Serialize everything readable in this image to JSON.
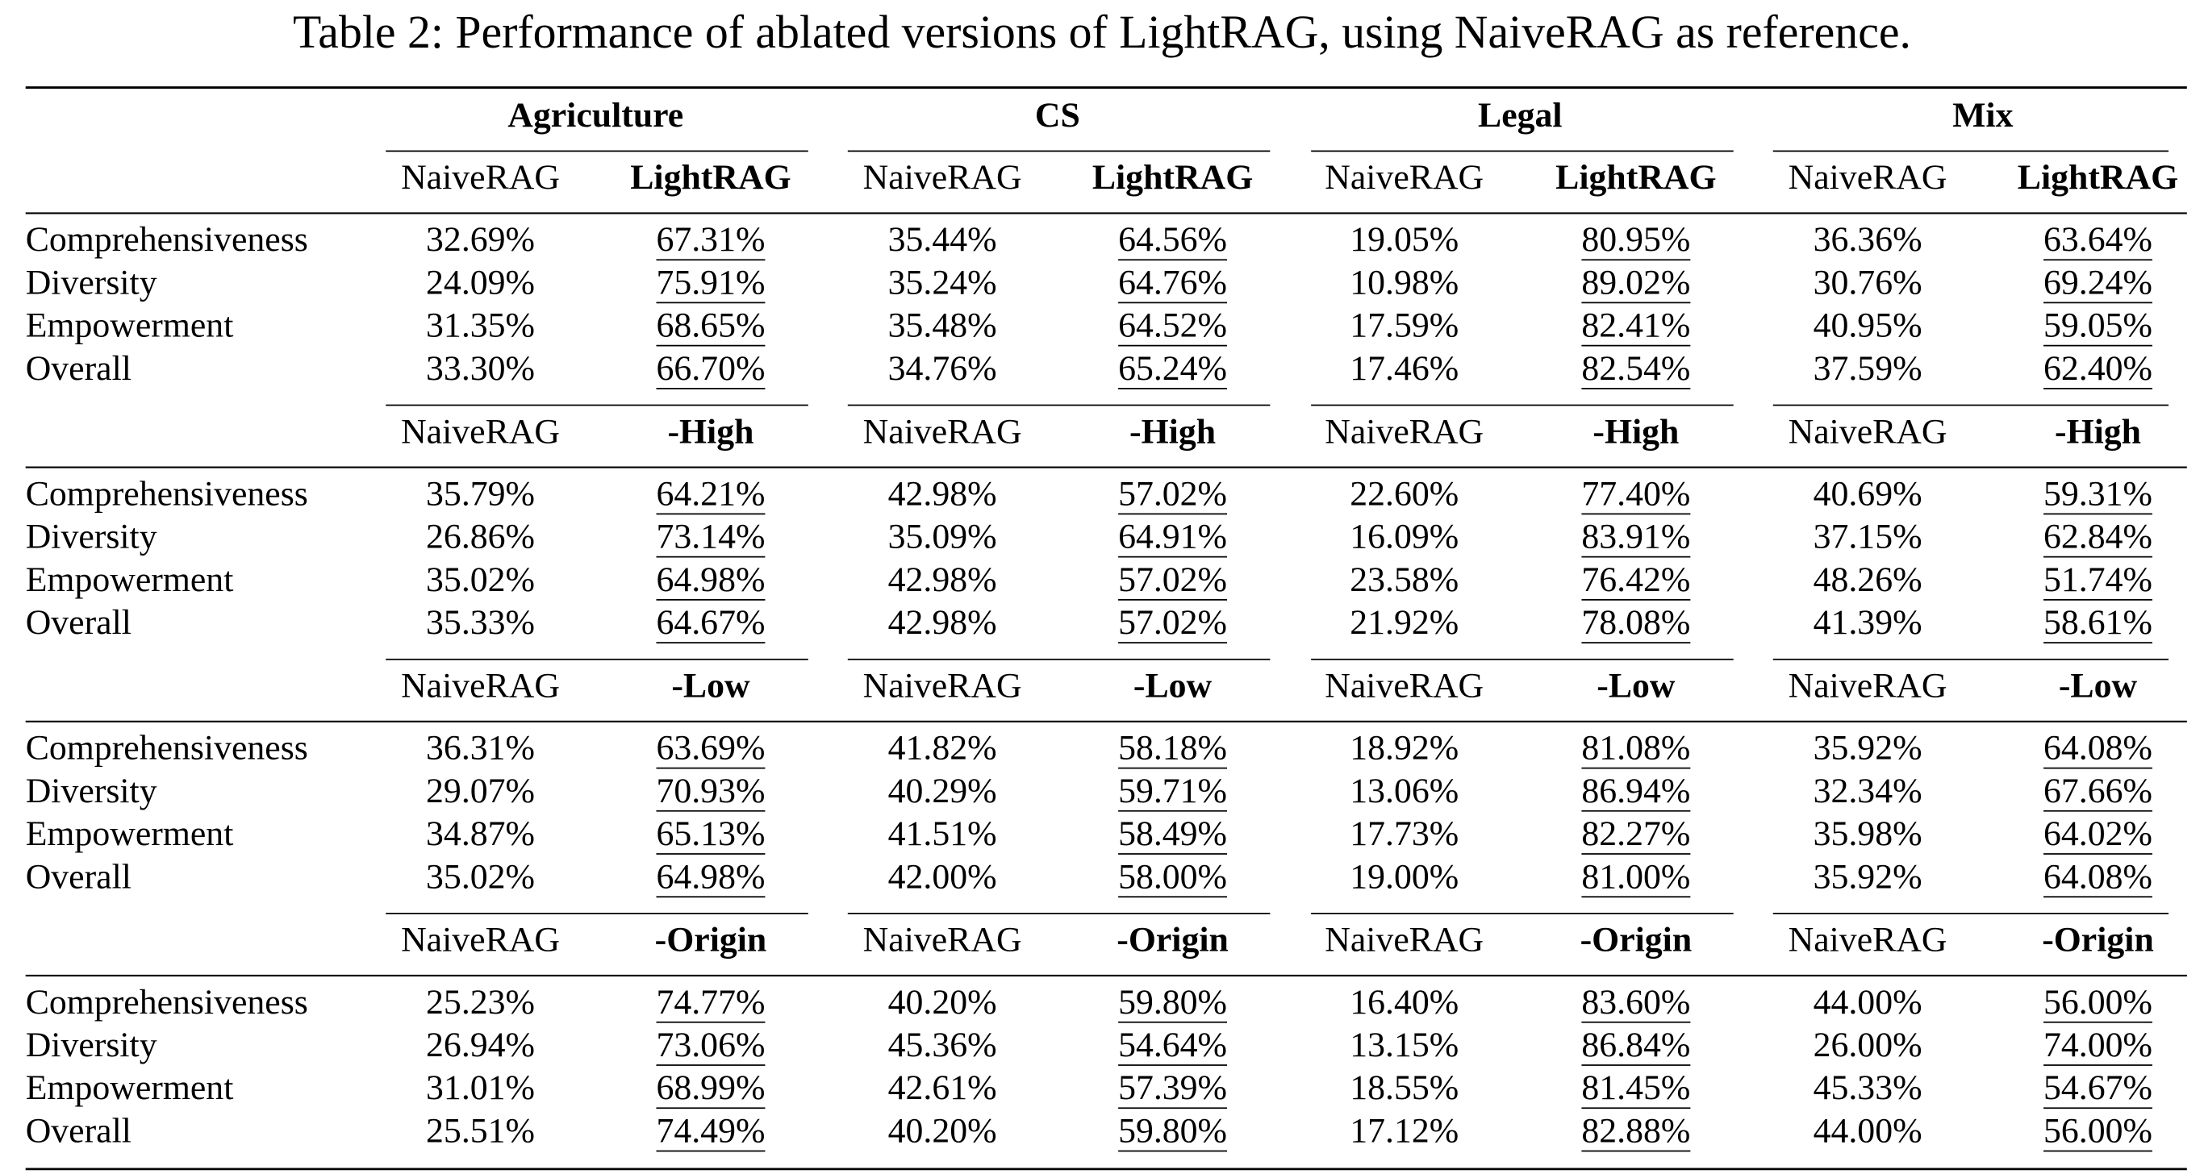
{
  "caption": "Table 2: Performance of ablated versions of LightRAG, using NaiveRAG as reference.",
  "groups": [
    "Agriculture",
    "CS",
    "Legal",
    "Mix"
  ],
  "sections": [
    {
      "header": [
        "NaiveRAG",
        "LightRAG",
        "NaiveRAG",
        "LightRAG",
        "NaiveRAG",
        "LightRAG",
        "NaiveRAG",
        "LightRAG"
      ],
      "rows": [
        {
          "label": "Comprehensiveness",
          "cells": [
            "32.69%",
            "67.31%",
            "35.44%",
            "64.56%",
            "19.05%",
            "80.95%",
            "36.36%",
            "63.64%"
          ]
        },
        {
          "label": "Diversity",
          "cells": [
            "24.09%",
            "75.91%",
            "35.24%",
            "64.76%",
            "10.98%",
            "89.02%",
            "30.76%",
            "69.24%"
          ]
        },
        {
          "label": "Empowerment",
          "cells": [
            "31.35%",
            "68.65%",
            "35.48%",
            "64.52%",
            "17.59%",
            "82.41%",
            "40.95%",
            "59.05%"
          ]
        },
        {
          "label": "Overall",
          "cells": [
            "33.30%",
            "66.70%",
            "34.76%",
            "65.24%",
            "17.46%",
            "82.54%",
            "37.59%",
            "62.40%"
          ]
        }
      ]
    },
    {
      "header": [
        "NaiveRAG",
        "-High",
        "NaiveRAG",
        "-High",
        "NaiveRAG",
        "-High",
        "NaiveRAG",
        "-High"
      ],
      "rows": [
        {
          "label": "Comprehensiveness",
          "cells": [
            "35.79%",
            "64.21%",
            "42.98%",
            "57.02%",
            "22.60%",
            "77.40%",
            "40.69%",
            "59.31%"
          ]
        },
        {
          "label": "Diversity",
          "cells": [
            "26.86%",
            "73.14%",
            "35.09%",
            "64.91%",
            "16.09%",
            "83.91%",
            "37.15%",
            "62.84%"
          ]
        },
        {
          "label": "Empowerment",
          "cells": [
            "35.02%",
            "64.98%",
            "42.98%",
            "57.02%",
            "23.58%",
            "76.42%",
            "48.26%",
            "51.74%"
          ]
        },
        {
          "label": "Overall",
          "cells": [
            "35.33%",
            "64.67%",
            "42.98%",
            "57.02%",
            "21.92%",
            "78.08%",
            "41.39%",
            "58.61%"
          ]
        }
      ]
    },
    {
      "header": [
        "NaiveRAG",
        "-Low",
        "NaiveRAG",
        "-Low",
        "NaiveRAG",
        "-Low",
        "NaiveRAG",
        "-Low"
      ],
      "rows": [
        {
          "label": "Comprehensiveness",
          "cells": [
            "36.31%",
            "63.69%",
            "41.82%",
            "58.18%",
            "18.92%",
            "81.08%",
            "35.92%",
            "64.08%"
          ]
        },
        {
          "label": "Diversity",
          "cells": [
            "29.07%",
            "70.93%",
            "40.29%",
            "59.71%",
            "13.06%",
            "86.94%",
            "32.34%",
            "67.66%"
          ]
        },
        {
          "label": "Empowerment",
          "cells": [
            "34.87%",
            "65.13%",
            "41.51%",
            "58.49%",
            "17.73%",
            "82.27%",
            "35.98%",
            "64.02%"
          ]
        },
        {
          "label": "Overall",
          "cells": [
            "35.02%",
            "64.98%",
            "42.00%",
            "58.00%",
            "19.00%",
            "81.00%",
            "35.92%",
            "64.08%"
          ]
        }
      ]
    },
    {
      "header": [
        "NaiveRAG",
        "-Origin",
        "NaiveRAG",
        "-Origin",
        "NaiveRAG",
        "-Origin",
        "NaiveRAG",
        "-Origin"
      ],
      "rows": [
        {
          "label": "Comprehensiveness",
          "cells": [
            "25.23%",
            "74.77%",
            "40.20%",
            "59.80%",
            "16.40%",
            "83.60%",
            "44.00%",
            "56.00%"
          ]
        },
        {
          "label": "Diversity",
          "cells": [
            "26.94%",
            "73.06%",
            "45.36%",
            "54.64%",
            "13.15%",
            "86.84%",
            "26.00%",
            "74.00%"
          ]
        },
        {
          "label": "Empowerment",
          "cells": [
            "31.01%",
            "68.99%",
            "42.61%",
            "57.39%",
            "18.55%",
            "81.45%",
            "45.33%",
            "54.67%"
          ]
        },
        {
          "label": "Overall",
          "cells": [
            "25.51%",
            "74.49%",
            "40.20%",
            "59.80%",
            "17.12%",
            "82.88%",
            "44.00%",
            "56.00%"
          ]
        }
      ]
    }
  ]
}
